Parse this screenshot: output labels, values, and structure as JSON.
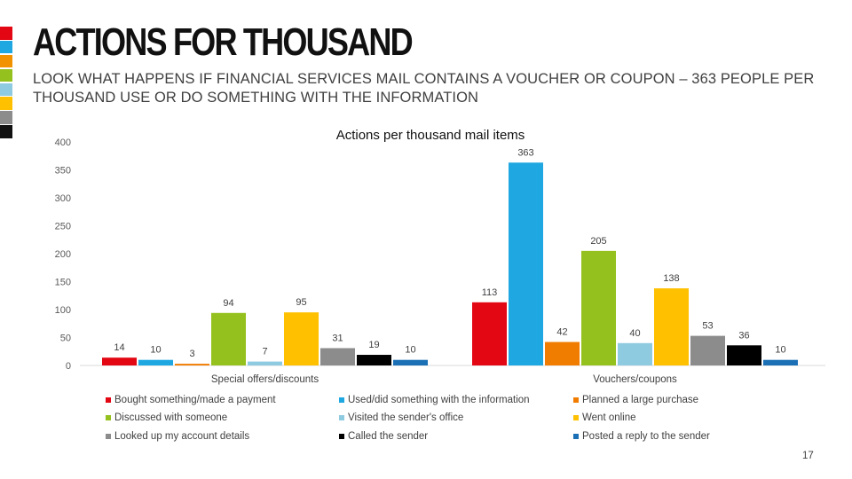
{
  "slide": {
    "title": "ACTIONS FOR THOUSAND",
    "subtitle": "LOOK WHAT HAPPENS IF FINANCIAL SERVICES MAIL CONTAINS A VOUCHER OR COUPON – 363 PEOPLE PER THOUSAND USE OR DO SOMETHING WITH THE INFORMATION",
    "page_number": "17",
    "accent_stripe_colors": [
      "#e30613",
      "#1ea7e1",
      "#f39200",
      "#95c11f",
      "#8fcbe0",
      "#ffc000",
      "#8c8c8c",
      "#111111"
    ]
  },
  "chart_data": {
    "type": "bar",
    "title": "Actions per thousand mail items",
    "xlabel": "",
    "ylabel": "",
    "ylim": [
      0,
      400
    ],
    "yticks": [
      0,
      50,
      100,
      150,
      200,
      250,
      300,
      350,
      400
    ],
    "grid": false,
    "legend_position": "bottom",
    "categories": [
      "Special offers/discounts",
      "Vouchers/coupons"
    ],
    "series": [
      {
        "name": "Bought something/made a payment",
        "color": "#e30613",
        "values": [
          14,
          113
        ]
      },
      {
        "name": "Used/did something with the information",
        "color": "#1ea7e1",
        "values": [
          10,
          363
        ]
      },
      {
        "name": "Planned a large purchase",
        "color": "#f07d00",
        "values": [
          3,
          42
        ]
      },
      {
        "name": "Discussed with someone",
        "color": "#95c11f",
        "values": [
          94,
          205
        ]
      },
      {
        "name": "Visited the sender's office",
        "color": "#8fcbe0",
        "values": [
          7,
          40
        ]
      },
      {
        "name": "Went online",
        "color": "#ffc000",
        "values": [
          95,
          138
        ]
      },
      {
        "name": "Looked up my account details",
        "color": "#8c8c8c",
        "values": [
          31,
          53
        ]
      },
      {
        "name": "Called the sender",
        "color": "#000000",
        "values": [
          19,
          36
        ]
      },
      {
        "name": "Posted a reply to the sender",
        "color": "#1b6fb5",
        "values": [
          10,
          10
        ]
      }
    ]
  }
}
